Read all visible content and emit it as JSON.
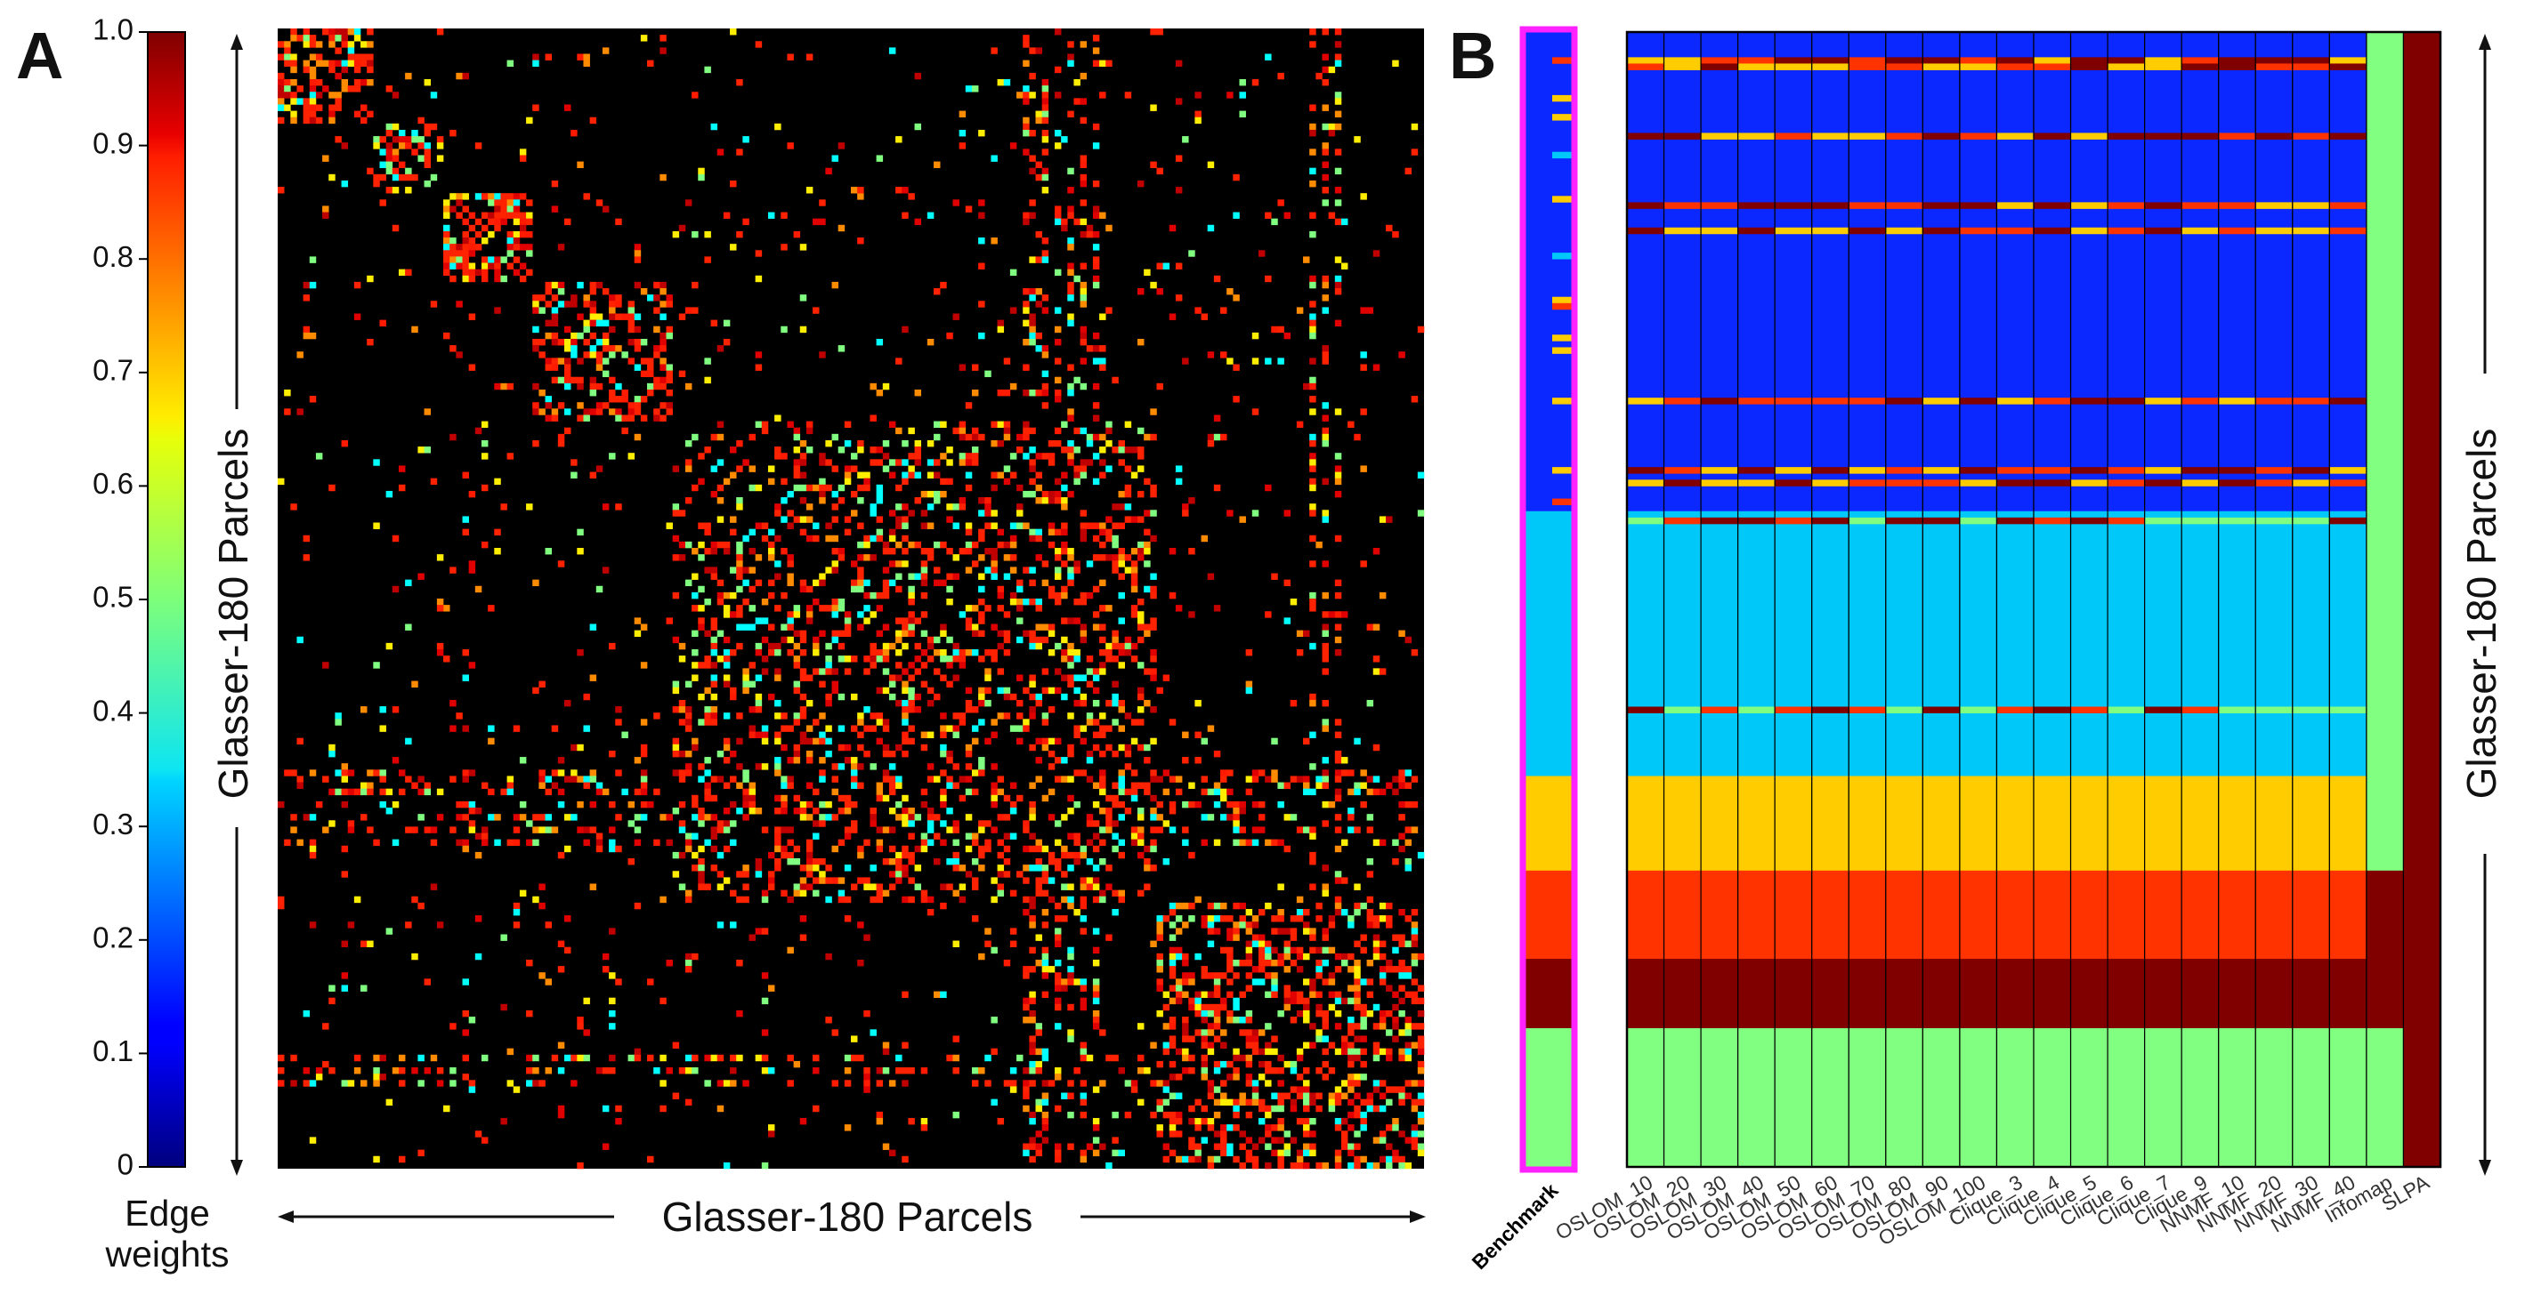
{
  "panel_a_label": "A",
  "panel_b_label": "B",
  "chart_data": [
    {
      "type": "heatmap",
      "panel": "A",
      "title": "",
      "xlabel": "Glasser-180 Parcels",
      "ylabel": "Glasser-180 Parcels",
      "colorbar_label_line1": "Edge",
      "colorbar_label_line2": "weights",
      "colorbar_range": [
        0,
        1
      ],
      "colorbar_ticks": [
        "1.0",
        "0.9",
        "0.8",
        "0.7",
        "0.6",
        "0.5",
        "0.4",
        "0.3",
        "0.2",
        "0.1",
        "0"
      ],
      "colormap": "jet",
      "n_parcels": 180,
      "block_sizes": [
        76,
        42,
        15,
        14,
        11,
        22
      ],
      "block_order": [
        2,
        4,
        3,
        5,
        0,
        1
      ],
      "background_color": "#000000",
      "edge_color_dominant": "#ff2200",
      "edge_color_secondary": "#80ff80"
    },
    {
      "type": "heatmap",
      "panel": "B",
      "title": "",
      "ylabel": "Glasser-180 Parcels",
      "benchmark_label": "Benchmark",
      "benchmark_highlight_color": "#ff22ff",
      "methods": [
        "OSLOM_10",
        "OSLOM_20",
        "OSLOM_30",
        "OSLOM_40",
        "OSLOM_50",
        "OSLOM_60",
        "OSLOM_70",
        "OSLOM_80",
        "OSLOM_90",
        "OSLOM_100",
        "Clique_3",
        "Clique_4",
        "Clique_5",
        "Clique_6",
        "Clique_7",
        "Clique_9",
        "NNMF_10",
        "NNMF_20",
        "NNMF_30",
        "NNMF_40",
        "Infomap",
        "SLPA"
      ],
      "community_colors": [
        "#0a28ff",
        "#00c8f8",
        "#ffcc00",
        "#ff3300",
        "#800000",
        "#80ff80"
      ],
      "benchmark_block_sizes": [
        76,
        42,
        15,
        14,
        11,
        22
      ]
    }
  ]
}
